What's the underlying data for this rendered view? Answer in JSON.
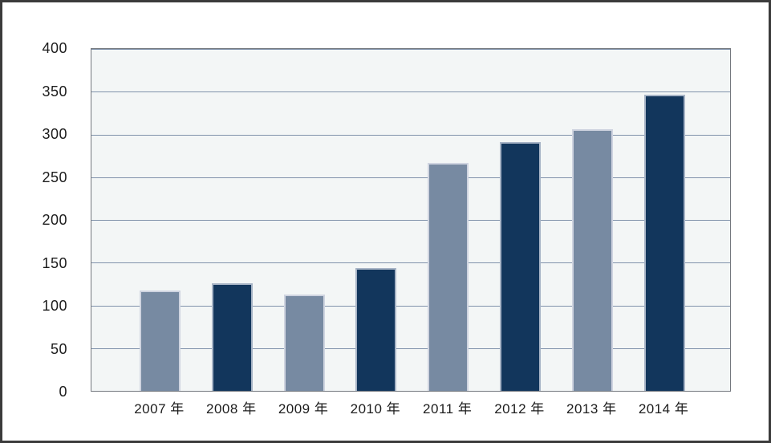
{
  "window": {
    "background": "#ffffff",
    "frame_border_color": "#3b3b3b"
  },
  "chart_data": {
    "type": "bar",
    "title": "",
    "xlabel": "",
    "ylabel": "",
    "categories": [
      "2007 年",
      "2008 年",
      "2009 年",
      "2010 年",
      "2011 年",
      "2012 年",
      "2013 年",
      "2014 年"
    ],
    "values": [
      117,
      125,
      112,
      143,
      265,
      290,
      305,
      345
    ],
    "bar_colors": [
      "#778aa2",
      "#12365c",
      "#778aa2",
      "#12365c",
      "#778aa2",
      "#12365c",
      "#778aa2",
      "#12365c"
    ],
    "bar_border_colors": [
      "#cfd4e0",
      "#a7b4c6",
      "#cfd4e0",
      "#a7b4c6",
      "#cfd4e0",
      "#a7b4c6",
      "#cfd4e0",
      "#a7b4c6"
    ],
    "ylim": [
      0,
      400
    ],
    "yticks": [
      0,
      50,
      100,
      150,
      200,
      250,
      300,
      350,
      400
    ],
    "grid": true,
    "legend": "none",
    "plot_background": "#f3f6f6",
    "gridline_color": "#8092ab",
    "plot_border_color": "#74787e",
    "tick_label_color": "#1c1c1c"
  }
}
